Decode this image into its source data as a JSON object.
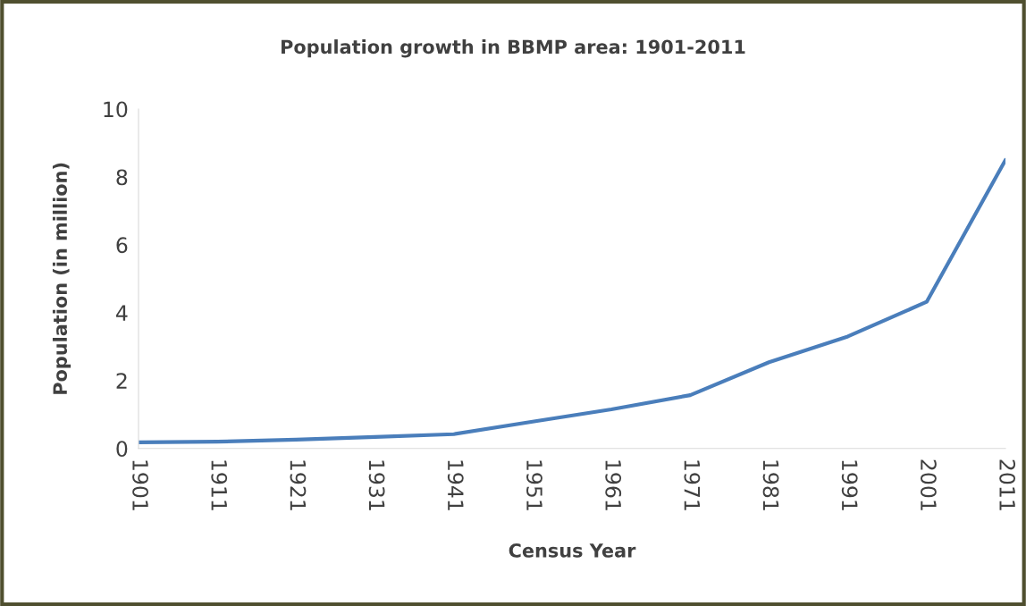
{
  "chart_data": {
    "type": "line",
    "title": "Population growth in BBMP area: 1901-2011",
    "xlabel": "Census Year",
    "ylabel": "Population (in million)",
    "categories": [
      "1901",
      "1911",
      "1921",
      "1931",
      "1941",
      "1951",
      "1961",
      "1971",
      "1981",
      "1991",
      "2001",
      "2011"
    ],
    "series": [
      {
        "color": "#4a7ebb",
        "values": [
          0.18,
          0.2,
          0.26,
          0.34,
          0.42,
          0.79,
          1.15,
          1.57,
          2.54,
          3.3,
          4.32,
          8.5
        ]
      }
    ],
    "ylim": [
      0,
      10
    ],
    "yticks": [
      0,
      2,
      4,
      6,
      8,
      10
    ],
    "grid": false,
    "legend": false,
    "marker": "none",
    "line_style": "solid"
  }
}
